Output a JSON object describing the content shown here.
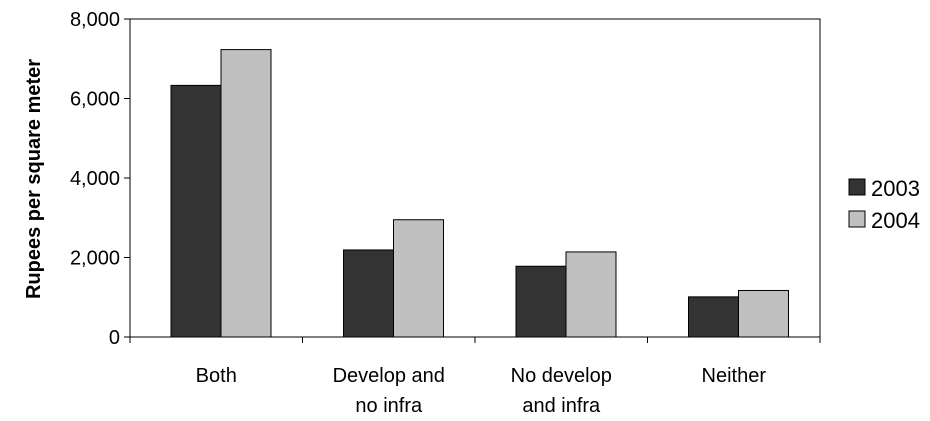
{
  "chart_data": {
    "type": "bar",
    "title": "",
    "xlabel": "",
    "ylabel": "Rupees per square meter",
    "categories": [
      [
        "Both"
      ],
      [
        "Develop and",
        "no infra"
      ],
      [
        "No develop",
        "and infra"
      ],
      [
        "Neither"
      ]
    ],
    "series": [
      {
        "name": "2003",
        "color": "#333333",
        "values": [
          6330,
          2190,
          1780,
          1010
        ]
      },
      {
        "name": "2004",
        "color": "#c0c0c0",
        "values": [
          7230,
          2950,
          2140,
          1170
        ]
      }
    ],
    "ylim": [
      0,
      8000
    ],
    "yticks": [
      0,
      2000,
      4000,
      6000,
      8000
    ],
    "ytick_labels": [
      "0",
      "2,000",
      "4,000",
      "6,000",
      "8,000"
    ],
    "grid": false,
    "legend_position": "right"
  }
}
